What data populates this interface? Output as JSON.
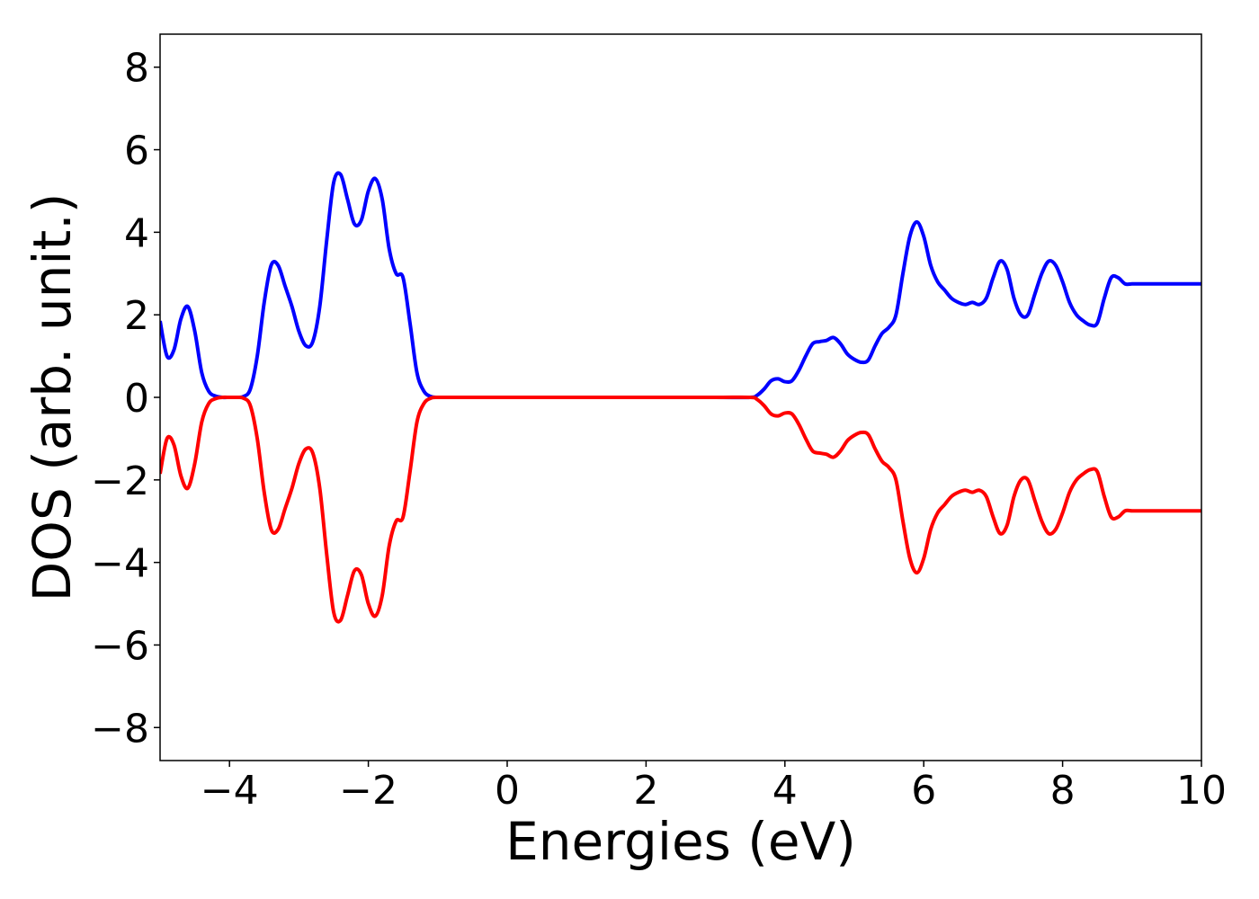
{
  "chart_data": {
    "type": "line",
    "title": "",
    "xlabel": "Energies (eV)",
    "ylabel": "DOS (arb. unit.)",
    "xlim": [
      -5,
      10
    ],
    "ylim": [
      -8.8,
      8.8
    ],
    "xticks": [
      -4,
      -2,
      0,
      2,
      4,
      6,
      8,
      10
    ],
    "xtick_labels": [
      "−4",
      "−2",
      "0",
      "2",
      "4",
      "6",
      "8",
      "10"
    ],
    "yticks": [
      8,
      6,
      4,
      2,
      0,
      -2,
      -4,
      -6,
      -8
    ],
    "ytick_labels": [
      "8",
      "6",
      "4",
      "2",
      "0",
      "−2",
      "−4",
      "−6",
      "−8"
    ],
    "grid": false,
    "legend": "none",
    "series": [
      {
        "color": "#0000ff",
        "x": [
          -5.0,
          -4.9,
          -4.8,
          -4.7,
          -4.6,
          -4.5,
          -4.4,
          -4.3,
          -4.2,
          -4.1,
          -4.0,
          -3.9,
          -3.8,
          -3.7,
          -3.6,
          -3.5,
          -3.4,
          -3.3,
          -3.2,
          -3.1,
          -3.0,
          -2.9,
          -2.8,
          -2.7,
          -2.6,
          -2.5,
          -2.4,
          -2.3,
          -2.2,
          -2.1,
          -2.0,
          -1.9,
          -1.8,
          -1.7,
          -1.6,
          -1.5,
          -1.4,
          -1.3,
          -1.2,
          -1.1,
          -1.0,
          -0.9,
          -0.8,
          -0.7,
          -0.6,
          -0.5,
          0.0,
          1.0,
          2.0,
          3.0,
          3.5,
          3.6,
          3.7,
          3.8,
          3.9,
          4.0,
          4.1,
          4.2,
          4.3,
          4.4,
          4.5,
          4.6,
          4.7,
          4.8,
          4.9,
          5.0,
          5.1,
          5.2,
          5.3,
          5.4,
          5.5,
          5.6,
          5.7,
          5.8,
          5.9,
          6.0,
          6.1,
          6.2,
          6.3,
          6.4,
          6.5,
          6.6,
          6.7,
          6.8,
          6.9,
          7.0,
          7.1,
          7.2,
          7.3,
          7.4,
          7.5,
          7.6,
          7.7,
          7.8,
          7.9,
          8.0,
          8.1,
          8.2,
          8.3,
          8.4,
          8.5,
          8.6,
          8.7,
          8.8,
          8.9,
          9.0,
          9.1,
          9.2,
          9.3,
          9.4,
          9.5,
          9.6,
          9.7,
          9.8,
          9.9,
          10.0
        ],
        "y": [
          1.85,
          1.0,
          1.15,
          1.9,
          2.2,
          1.6,
          0.6,
          0.15,
          0.03,
          0.0,
          0.0,
          0.0,
          0.02,
          0.2,
          1.0,
          2.3,
          3.2,
          3.2,
          2.7,
          2.2,
          1.6,
          1.25,
          1.35,
          2.2,
          3.8,
          5.2,
          5.4,
          4.8,
          4.2,
          4.3,
          5.0,
          5.3,
          4.8,
          3.6,
          3.0,
          2.9,
          1.8,
          0.6,
          0.15,
          0.02,
          0.0,
          0.0,
          0.0,
          0.0,
          0.0,
          0.0,
          0.0,
          0.0,
          0.0,
          0.0,
          0.0,
          0.05,
          0.2,
          0.4,
          0.45,
          0.38,
          0.4,
          0.65,
          1.0,
          1.3,
          1.35,
          1.38,
          1.45,
          1.3,
          1.05,
          0.92,
          0.85,
          0.9,
          1.25,
          1.55,
          1.7,
          2.0,
          3.0,
          3.9,
          4.25,
          3.9,
          3.2,
          2.8,
          2.6,
          2.4,
          2.3,
          2.25,
          2.3,
          2.25,
          2.4,
          2.9,
          3.3,
          3.1,
          2.4,
          2.0,
          2.0,
          2.5,
          3.0,
          3.3,
          3.2,
          2.8,
          2.3,
          2.0,
          1.85,
          1.75,
          1.8,
          2.4,
          2.9,
          2.9,
          2.75,
          2.75,
          2.75,
          2.75,
          2.75,
          2.75,
          2.75,
          2.75,
          2.75,
          2.75,
          2.75,
          2.75
        ]
      },
      {
        "color": "#ff0000",
        "x": [
          -5.0,
          -4.9,
          -4.8,
          -4.7,
          -4.6,
          -4.5,
          -4.4,
          -4.3,
          -4.2,
          -4.1,
          -4.0,
          -3.9,
          -3.8,
          -3.7,
          -3.6,
          -3.5,
          -3.4,
          -3.3,
          -3.2,
          -3.1,
          -3.0,
          -2.9,
          -2.8,
          -2.7,
          -2.6,
          -2.5,
          -2.4,
          -2.3,
          -2.2,
          -2.1,
          -2.0,
          -1.9,
          -1.8,
          -1.7,
          -1.6,
          -1.5,
          -1.4,
          -1.3,
          -1.2,
          -1.1,
          -1.0,
          -0.9,
          -0.8,
          -0.7,
          -0.6,
          -0.5,
          0.0,
          1.0,
          2.0,
          3.0,
          3.5,
          3.6,
          3.7,
          3.8,
          3.9,
          4.0,
          4.1,
          4.2,
          4.3,
          4.4,
          4.5,
          4.6,
          4.7,
          4.8,
          4.9,
          5.0,
          5.1,
          5.2,
          5.3,
          5.4,
          5.5,
          5.6,
          5.7,
          5.8,
          5.9,
          6.0,
          6.1,
          6.2,
          6.3,
          6.4,
          6.5,
          6.6,
          6.7,
          6.8,
          6.9,
          7.0,
          7.1,
          7.2,
          7.3,
          7.4,
          7.5,
          7.6,
          7.7,
          7.8,
          7.9,
          8.0,
          8.1,
          8.2,
          8.3,
          8.4,
          8.5,
          8.6,
          8.7,
          8.8,
          8.9,
          9.0,
          9.1,
          9.2,
          9.3,
          9.4,
          9.5,
          9.6,
          9.7,
          9.8,
          9.9,
          10.0
        ],
        "y": [
          -1.85,
          -1.0,
          -1.15,
          -1.9,
          -2.2,
          -1.6,
          -0.6,
          -0.15,
          -0.03,
          0.0,
          0.0,
          0.0,
          -0.02,
          -0.2,
          -1.0,
          -2.3,
          -3.2,
          -3.2,
          -2.7,
          -2.2,
          -1.6,
          -1.25,
          -1.35,
          -2.2,
          -3.8,
          -5.2,
          -5.4,
          -4.8,
          -4.2,
          -4.3,
          -5.0,
          -5.3,
          -4.8,
          -3.6,
          -3.0,
          -2.9,
          -1.8,
          -0.6,
          -0.15,
          -0.02,
          0.0,
          0.0,
          0.0,
          0.0,
          0.0,
          0.0,
          0.0,
          0.0,
          0.0,
          0.0,
          0.0,
          -0.05,
          -0.2,
          -0.4,
          -0.45,
          -0.38,
          -0.4,
          -0.65,
          -1.0,
          -1.3,
          -1.35,
          -1.38,
          -1.45,
          -1.3,
          -1.05,
          -0.92,
          -0.85,
          -0.9,
          -1.25,
          -1.55,
          -1.7,
          -2.0,
          -3.0,
          -3.9,
          -4.25,
          -3.9,
          -3.2,
          -2.8,
          -2.6,
          -2.4,
          -2.3,
          -2.25,
          -2.3,
          -2.25,
          -2.4,
          -2.9,
          -3.3,
          -3.1,
          -2.4,
          -2.0,
          -2.0,
          -2.5,
          -3.0,
          -3.3,
          -3.2,
          -2.8,
          -2.3,
          -2.0,
          -1.85,
          -1.75,
          -1.8,
          -2.4,
          -2.9,
          -2.9,
          -2.75,
          -2.75,
          -2.75,
          -2.75,
          -2.75,
          -2.75,
          -2.75,
          -2.75,
          -2.75,
          -2.75,
          -2.75,
          -2.75
        ]
      }
    ]
  }
}
